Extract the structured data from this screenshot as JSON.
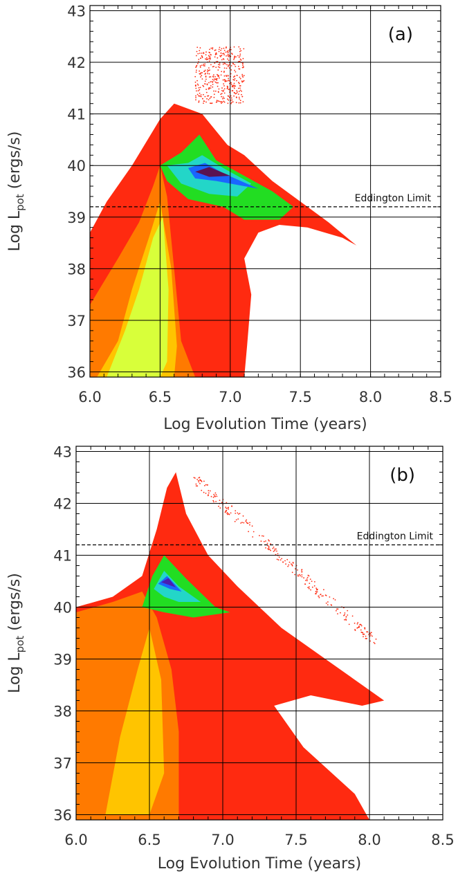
{
  "chart_data": [
    {
      "type": "heatmap",
      "panel_label": "(a)",
      "xlabel": "Log Evolution Time (years)",
      "ylabel_main": "Log L",
      "ylabel_sub": "pot",
      "ylabel_tail": " (ergs/s)",
      "xlim": [
        6.0,
        8.5
      ],
      "ylim": [
        35.9,
        43.1
      ],
      "x_ticks": [
        6.0,
        6.5,
        7.0,
        7.5,
        8.0,
        8.5
      ],
      "x_tick_labels": [
        "6.0",
        "6.5",
        "7.0",
        "7.5",
        "8.0",
        "8.5"
      ],
      "y_ticks": [
        36,
        37,
        38,
        39,
        40,
        41,
        42,
        43
      ],
      "y_tick_labels": [
        "36",
        "37",
        "38",
        "39",
        "40",
        "41",
        "42",
        "43"
      ],
      "grid": true,
      "reference_line": {
        "label": "Eddington Limit",
        "y": 39.2,
        "style": "dashed"
      },
      "color_scale": [
        "#ff2a10",
        "#ff7a00",
        "#ffc400",
        "#d8ff3a",
        "#22dd22",
        "#23d6c8",
        "#1a66ff",
        "#4a1fb0",
        "#5a1252"
      ],
      "legend": "none"
    },
    {
      "type": "heatmap",
      "panel_label": "(b)",
      "xlabel": "Log Evolution Time (years)",
      "ylabel_main": "Log L",
      "ylabel_sub": "pot",
      "ylabel_tail": " (ergs/s)",
      "xlim": [
        6.0,
        8.5
      ],
      "ylim": [
        35.9,
        43.1
      ],
      "x_ticks": [
        6.0,
        6.5,
        7.0,
        7.5,
        8.0,
        8.5
      ],
      "x_tick_labels": [
        "6.0",
        "6.5",
        "7.0",
        "7.5",
        "8.0",
        "8.5"
      ],
      "y_ticks": [
        36,
        37,
        38,
        39,
        40,
        41,
        42,
        43
      ],
      "y_tick_labels": [
        "36",
        "37",
        "38",
        "39",
        "40",
        "41",
        "42",
        "43"
      ],
      "grid": true,
      "reference_line": {
        "label": "Eddington Limit",
        "y": 41.2,
        "style": "dashed"
      },
      "color_scale": [
        "#ff2a10",
        "#ff7a00",
        "#ffc400",
        "#d8ff3a",
        "#22dd22",
        "#23d6c8",
        "#1a66ff",
        "#4a1fb0",
        "#5a1252"
      ],
      "legend": "none"
    }
  ]
}
